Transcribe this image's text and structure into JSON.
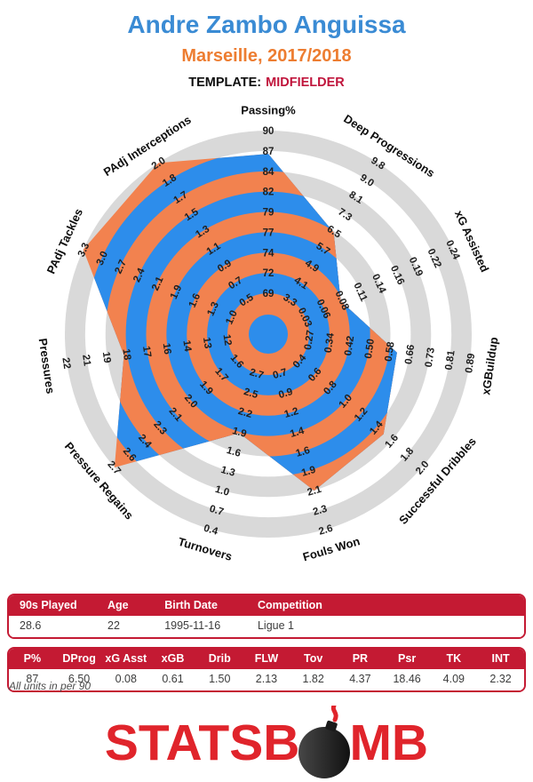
{
  "header": {
    "player": "Andre Zambo Anguissa",
    "team_season": "Marseille, 2017/2018",
    "template_label": "TEMPLATE:",
    "template_value": "MIDFIELDER"
  },
  "colors": {
    "title_blue": "#3a8bd4",
    "subtitle_orange": "#ed7d31",
    "template_red": "#c0153c",
    "radar_orange": "#f2824f",
    "radar_blue": "#2d8deb",
    "ring_gray": "#d9d9d9",
    "ring_white": "#ffffff",
    "table_red": "#c41a33",
    "logo_red": "#e0242b"
  },
  "chart_data": {
    "type": "radar",
    "title": "Andre Zambo Anguissa",
    "subtitle": "Marseille, 2017/2018",
    "template": "MIDFIELDER",
    "rings": 9,
    "ring_style": "alternating gray/white background, orange/blue inside player polygon",
    "axes": [
      {
        "label": "Passing%",
        "ticks": [
          "90",
          "87",
          "84",
          "82",
          "79",
          "77",
          "74",
          "72",
          "69"
        ],
        "value": 87
      },
      {
        "label": "Deep Progressions",
        "ticks": [
          "9.8",
          "9.0",
          "8.1",
          "7.3",
          "6.5",
          "5.7",
          "4.9",
          "4.1",
          "3.3"
        ],
        "value": 6.5
      },
      {
        "label": "xG Assisted",
        "ticks": [
          "0.24",
          "0.22",
          "0.19",
          "0.16",
          "0.14",
          "0.11",
          "0.08",
          "0.06",
          "0.03"
        ],
        "value": 0.08
      },
      {
        "label": "xGBuildup",
        "ticks": [
          "0.89",
          "0.81",
          "0.73",
          "0.66",
          "0.58",
          "0.50",
          "0.42",
          "0.34",
          "0.27"
        ],
        "value": 0.61
      },
      {
        "label": "Successful Dribbles",
        "ticks": [
          "2.0",
          "1.8",
          "1.6",
          "1.4",
          "1.2",
          "1.0",
          "0.8",
          "0.6",
          "0.4"
        ],
        "value": 1.5
      },
      {
        "label": "Fouls Won",
        "ticks": [
          "2.6",
          "2.3",
          "2.1",
          "1.9",
          "1.6",
          "1.4",
          "1.2",
          "0.9",
          "0.7"
        ],
        "value": 2.13
      },
      {
        "label": "Turnovers",
        "ticks": [
          "0.4",
          "0.7",
          "1.0",
          "1.3",
          "1.6",
          "1.9",
          "2.2",
          "2.5",
          "2.7"
        ],
        "value": 1.82
      },
      {
        "label": "Pressure Regains",
        "ticks": [
          "2.7",
          "2.6",
          "2.4",
          "2.3",
          "2.1",
          "2.0",
          "1.9",
          "1.7",
          "1.6"
        ],
        "value": 4.37
      },
      {
        "label": "Pressures",
        "ticks": [
          "22",
          "21",
          "19",
          "18",
          "17",
          "16",
          "14",
          "13",
          "12"
        ],
        "value": 18.46
      },
      {
        "label": "PAdj Tackles",
        "ticks": [
          "3.3",
          "3.0",
          "2.7",
          "2.4",
          "2.1",
          "1.9",
          "1.6",
          "1.3",
          "1.0"
        ],
        "value": 4.09
      },
      {
        "label": "PAdj Interceptions",
        "ticks": [
          "2.0",
          "1.8",
          "1.7",
          "1.5",
          "1.3",
          "1.1",
          "0.9",
          "0.7",
          "0.5"
        ],
        "value": 2.32
      }
    ]
  },
  "info_table": {
    "headers": [
      "90s Played",
      "Age",
      "Birth Date",
      "Competition"
    ],
    "values": [
      "28.6",
      "22",
      "1995-11-16",
      "Ligue 1"
    ]
  },
  "stats_table": {
    "headers": [
      "P%",
      "DProg",
      "xG Asst",
      "xGB",
      "Drib",
      "FLW",
      "Tov",
      "PR",
      "Psr",
      "TK",
      "INT"
    ],
    "values": [
      "87",
      "6.50",
      "0.08",
      "0.61",
      "1.50",
      "2.13",
      "1.82",
      "4.37",
      "18.46",
      "4.09",
      "2.32"
    ]
  },
  "footnote": "All units in per 90",
  "logo": {
    "text_left": "STATSB",
    "text_right": "MB",
    "icon": "bomb-icon"
  }
}
